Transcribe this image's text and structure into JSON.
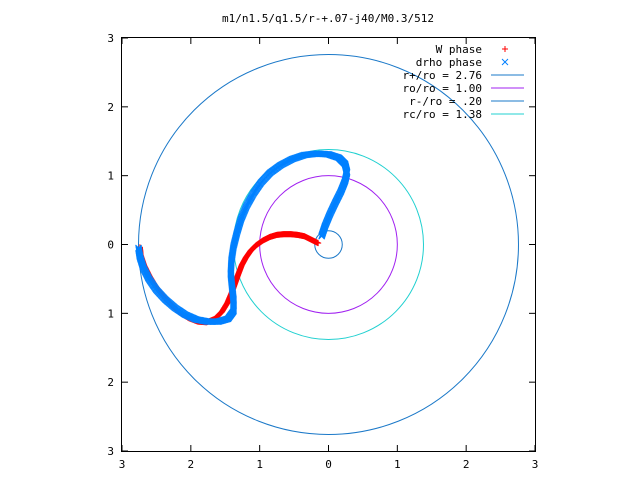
{
  "chart_data": {
    "type": "scatter",
    "title": "m1/n1.5/q1.5/r-+.07-j40/M0.3/512",
    "xlabel": "",
    "ylabel": "",
    "xlim": [
      -3,
      3
    ],
    "ylim": [
      -3,
      3
    ],
    "x_tick_values": [
      -3,
      -2,
      -1,
      0,
      1,
      2,
      3
    ],
    "x_tick_labels": [
      "3",
      "2",
      "1",
      "0",
      "1",
      "2",
      "3"
    ],
    "y_tick_values": [
      3,
      2,
      1,
      0,
      -1,
      -2,
      -3
    ],
    "y_tick_labels": [
      "3",
      "2",
      "1",
      "0",
      "1",
      "2",
      "3"
    ],
    "grid": false,
    "legend_position": "top-right",
    "legend": [
      {
        "label": "W phase",
        "color": "#ff0000",
        "marker": "+"
      },
      {
        "label": "drho phase",
        "color": "#0080ff",
        "marker": "x"
      },
      {
        "label": "r+/ro = 2.76",
        "color": "#1a78c8",
        "marker": "line"
      },
      {
        "label": "ro/ro = 1.00",
        "color": "#a020f0",
        "marker": "line"
      },
      {
        "label": "r-/ro = .20",
        "color": "#1a78c8",
        "marker": "line"
      },
      {
        "label": "rc/ro = 1.38",
        "color": "#20d0d0",
        "marker": "line"
      }
    ],
    "circles": [
      {
        "name": "r+/ro",
        "radius": 2.76,
        "color": "#1a78c8"
      },
      {
        "name": "ro/ro",
        "radius": 1.0,
        "color": "#a020f0"
      },
      {
        "name": "r-/ro",
        "radius": 0.2,
        "color": "#1a78c8"
      },
      {
        "name": "rc/ro",
        "radius": 1.38,
        "color": "#20d0d0"
      }
    ],
    "series": [
      {
        "name": "W phase",
        "color": "#ff0000",
        "marker": "+",
        "points": [
          [
            -0.15,
            0.02
          ],
          [
            -0.25,
            0.07
          ],
          [
            -0.35,
            0.12
          ],
          [
            -0.45,
            0.14
          ],
          [
            -0.55,
            0.15
          ],
          [
            -0.65,
            0.15
          ],
          [
            -0.75,
            0.14
          ],
          [
            -0.85,
            0.11
          ],
          [
            -0.95,
            0.06
          ],
          [
            -1.05,
            -0.01
          ],
          [
            -1.13,
            -0.09
          ],
          [
            -1.2,
            -0.19
          ],
          [
            -1.26,
            -0.3
          ],
          [
            -1.31,
            -0.43
          ],
          [
            -1.36,
            -0.57
          ],
          [
            -1.41,
            -0.71
          ],
          [
            -1.47,
            -0.85
          ],
          [
            -1.55,
            -0.98
          ],
          [
            -1.65,
            -1.08
          ],
          [
            -1.77,
            -1.13
          ],
          [
            -1.9,
            -1.12
          ],
          [
            -2.03,
            -1.07
          ],
          [
            -2.16,
            -0.99
          ],
          [
            -2.28,
            -0.88
          ],
          [
            -2.4,
            -0.75
          ],
          [
            -2.51,
            -0.61
          ],
          [
            -2.6,
            -0.46
          ],
          [
            -2.68,
            -0.3
          ],
          [
            -2.73,
            -0.15
          ],
          [
            -2.74,
            -0.04
          ]
        ]
      },
      {
        "name": "drho phase",
        "color": "#0080ff",
        "marker": "x",
        "points": [
          [
            -0.1,
            0.12
          ],
          [
            -0.05,
            0.27
          ],
          [
            0.02,
            0.44
          ],
          [
            0.1,
            0.61
          ],
          [
            0.18,
            0.77
          ],
          [
            0.24,
            0.92
          ],
          [
            0.27,
            1.05
          ],
          [
            0.24,
            1.17
          ],
          [
            0.15,
            1.26
          ],
          [
            0.0,
            1.31
          ],
          [
            -0.17,
            1.32
          ],
          [
            -0.35,
            1.3
          ],
          [
            -0.53,
            1.24
          ],
          [
            -0.7,
            1.15
          ],
          [
            -0.85,
            1.04
          ],
          [
            -0.98,
            0.9
          ],
          [
            -1.09,
            0.74
          ],
          [
            -1.19,
            0.56
          ],
          [
            -1.27,
            0.37
          ],
          [
            -1.33,
            0.17
          ],
          [
            -1.38,
            -0.03
          ],
          [
            -1.41,
            -0.23
          ],
          [
            -1.42,
            -0.43
          ],
          [
            -1.4,
            -0.63
          ],
          [
            -1.38,
            -0.8
          ],
          [
            -1.38,
            -0.97
          ],
          [
            -1.46,
            -1.08
          ],
          [
            -1.6,
            -1.12
          ],
          [
            -1.76,
            -1.12
          ],
          [
            -1.92,
            -1.09
          ],
          [
            -2.08,
            -1.02
          ],
          [
            -2.23,
            -0.92
          ],
          [
            -2.37,
            -0.8
          ],
          [
            -2.5,
            -0.66
          ],
          [
            -2.61,
            -0.5
          ],
          [
            -2.69,
            -0.34
          ],
          [
            -2.74,
            -0.18
          ],
          [
            -2.76,
            -0.05
          ]
        ]
      }
    ]
  }
}
